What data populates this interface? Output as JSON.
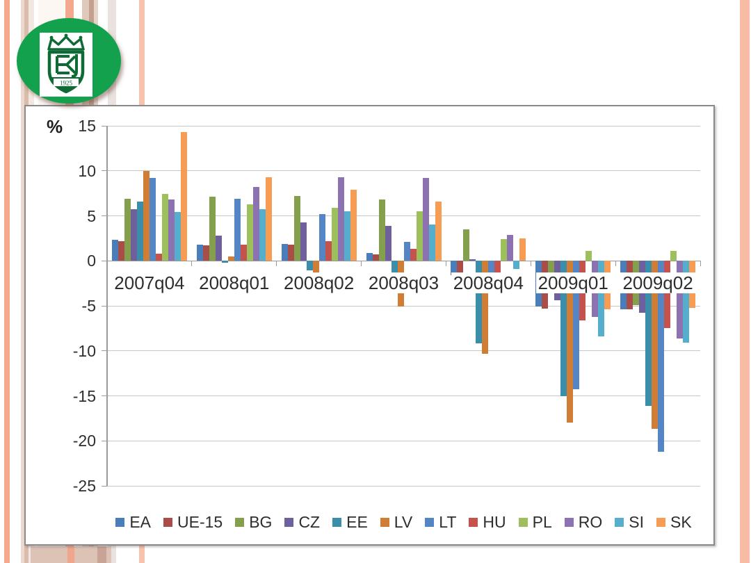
{
  "logo": {
    "year": "1925",
    "ellipse_color": "#14A14D",
    "emblem_color": "#0F6B35"
  },
  "chart_data": {
    "type": "bar",
    "title": "",
    "ylabel": "%",
    "xlabel": "",
    "ylim": [
      -25,
      15
    ],
    "ytick_step": 5,
    "grid": true,
    "legend_position": "bottom",
    "categories": [
      "2007q04",
      "2008q01",
      "2008q02",
      "2008q03",
      "2008q04",
      "2009q01",
      "2009q02"
    ],
    "series": [
      {
        "name": "EA",
        "color": "#4A7EBA",
        "values": [
          2.3,
          1.8,
          1.9,
          0.9,
          -1.6,
          -5.1,
          -5.4
        ]
      },
      {
        "name": "UE-15",
        "color": "#A94D49",
        "values": [
          2.2,
          1.7,
          1.8,
          0.7,
          -1.9,
          -5.3,
          -5.4
        ]
      },
      {
        "name": "BG",
        "color": "#84A04C",
        "values": [
          6.9,
          7.1,
          7.2,
          6.8,
          3.5,
          -3.5,
          -4.9
        ]
      },
      {
        "name": "CZ",
        "color": "#6F5F9C",
        "values": [
          5.7,
          2.8,
          4.3,
          3.9,
          0.2,
          -4.4,
          -5.8
        ]
      },
      {
        "name": "EE",
        "color": "#3A8EA9",
        "values": [
          6.6,
          -0.2,
          -1.1,
          -3.5,
          -9.2,
          -15.0,
          -16.1
        ]
      },
      {
        "name": "LV",
        "color": "#D07E35",
        "values": [
          10.0,
          0.5,
          -1.7,
          -5.1,
          -10.3,
          -18.0,
          -18.7
        ]
      },
      {
        "name": "LT",
        "color": "#5486C5",
        "values": [
          9.2,
          6.9,
          5.2,
          2.1,
          -2.2,
          -14.3,
          -21.2
        ]
      },
      {
        "name": "HU",
        "color": "#C6524E",
        "values": [
          0.8,
          1.8,
          2.2,
          1.3,
          -2.5,
          -6.6,
          -7.5
        ]
      },
      {
        "name": "PL",
        "color": "#9DC05D",
        "values": [
          7.4,
          6.3,
          5.9,
          5.5,
          2.4,
          1.1,
          1.1
        ]
      },
      {
        "name": "RO",
        "color": "#8C72B0",
        "values": [
          6.8,
          8.2,
          9.3,
          9.2,
          2.9,
          -6.2,
          -8.6
        ]
      },
      {
        "name": "SI",
        "color": "#55AECC",
        "values": [
          5.4,
          5.7,
          5.5,
          4.0,
          -0.9,
          -8.4,
          -9.1
        ]
      },
      {
        "name": "SK",
        "color": "#F69D53",
        "values": [
          14.3,
          9.3,
          7.9,
          6.6,
          2.5,
          -5.4,
          -5.2
        ]
      }
    ]
  }
}
